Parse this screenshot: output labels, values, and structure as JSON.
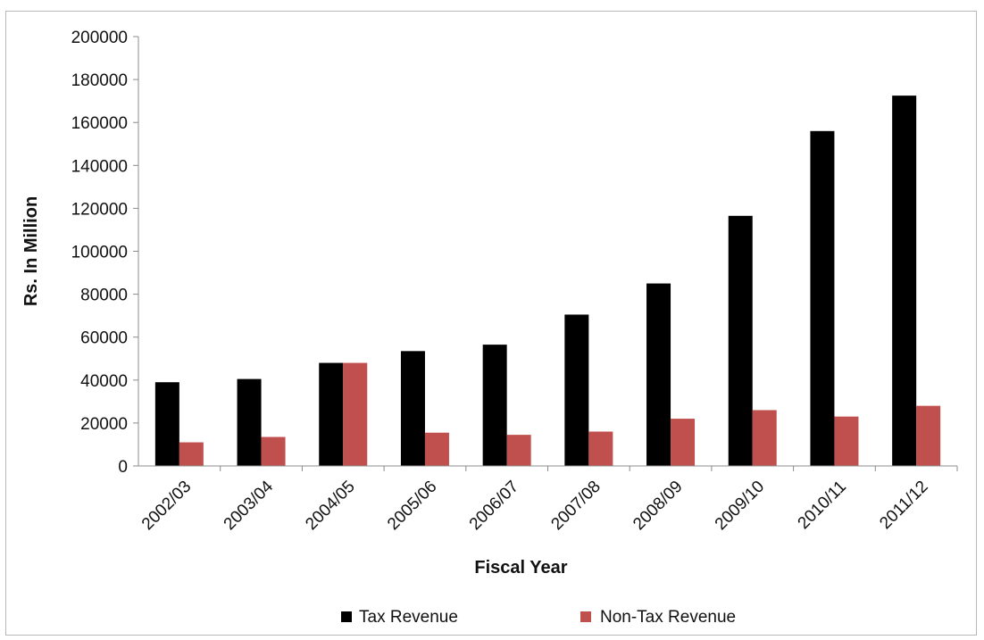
{
  "chart_data": {
    "type": "bar",
    "title": "",
    "xlabel": "Fiscal Year",
    "ylabel": "Rs. In Million",
    "ylim": [
      0,
      200000
    ],
    "yticks": [
      0,
      20000,
      40000,
      60000,
      80000,
      100000,
      120000,
      140000,
      160000,
      180000,
      200000
    ],
    "grid": false,
    "legend_position": "bottom",
    "categories": [
      "2002/03",
      "2003/04",
      "2004/05",
      "2005/06",
      "2006/07",
      "2007/08",
      "2008/09",
      "2009/10",
      "2010/11",
      "2011/12"
    ],
    "series": [
      {
        "name": "Tax Revenue",
        "color": "#000000",
        "values": [
          39000,
          40500,
          48000,
          53500,
          56500,
          70500,
          85000,
          116500,
          156000,
          172500
        ]
      },
      {
        "name": "Non-Tax Revenue",
        "color": "#c0504d",
        "values": [
          11000,
          13500,
          48000,
          15500,
          14500,
          16000,
          22000,
          26000,
          23000,
          28000
        ]
      }
    ]
  }
}
